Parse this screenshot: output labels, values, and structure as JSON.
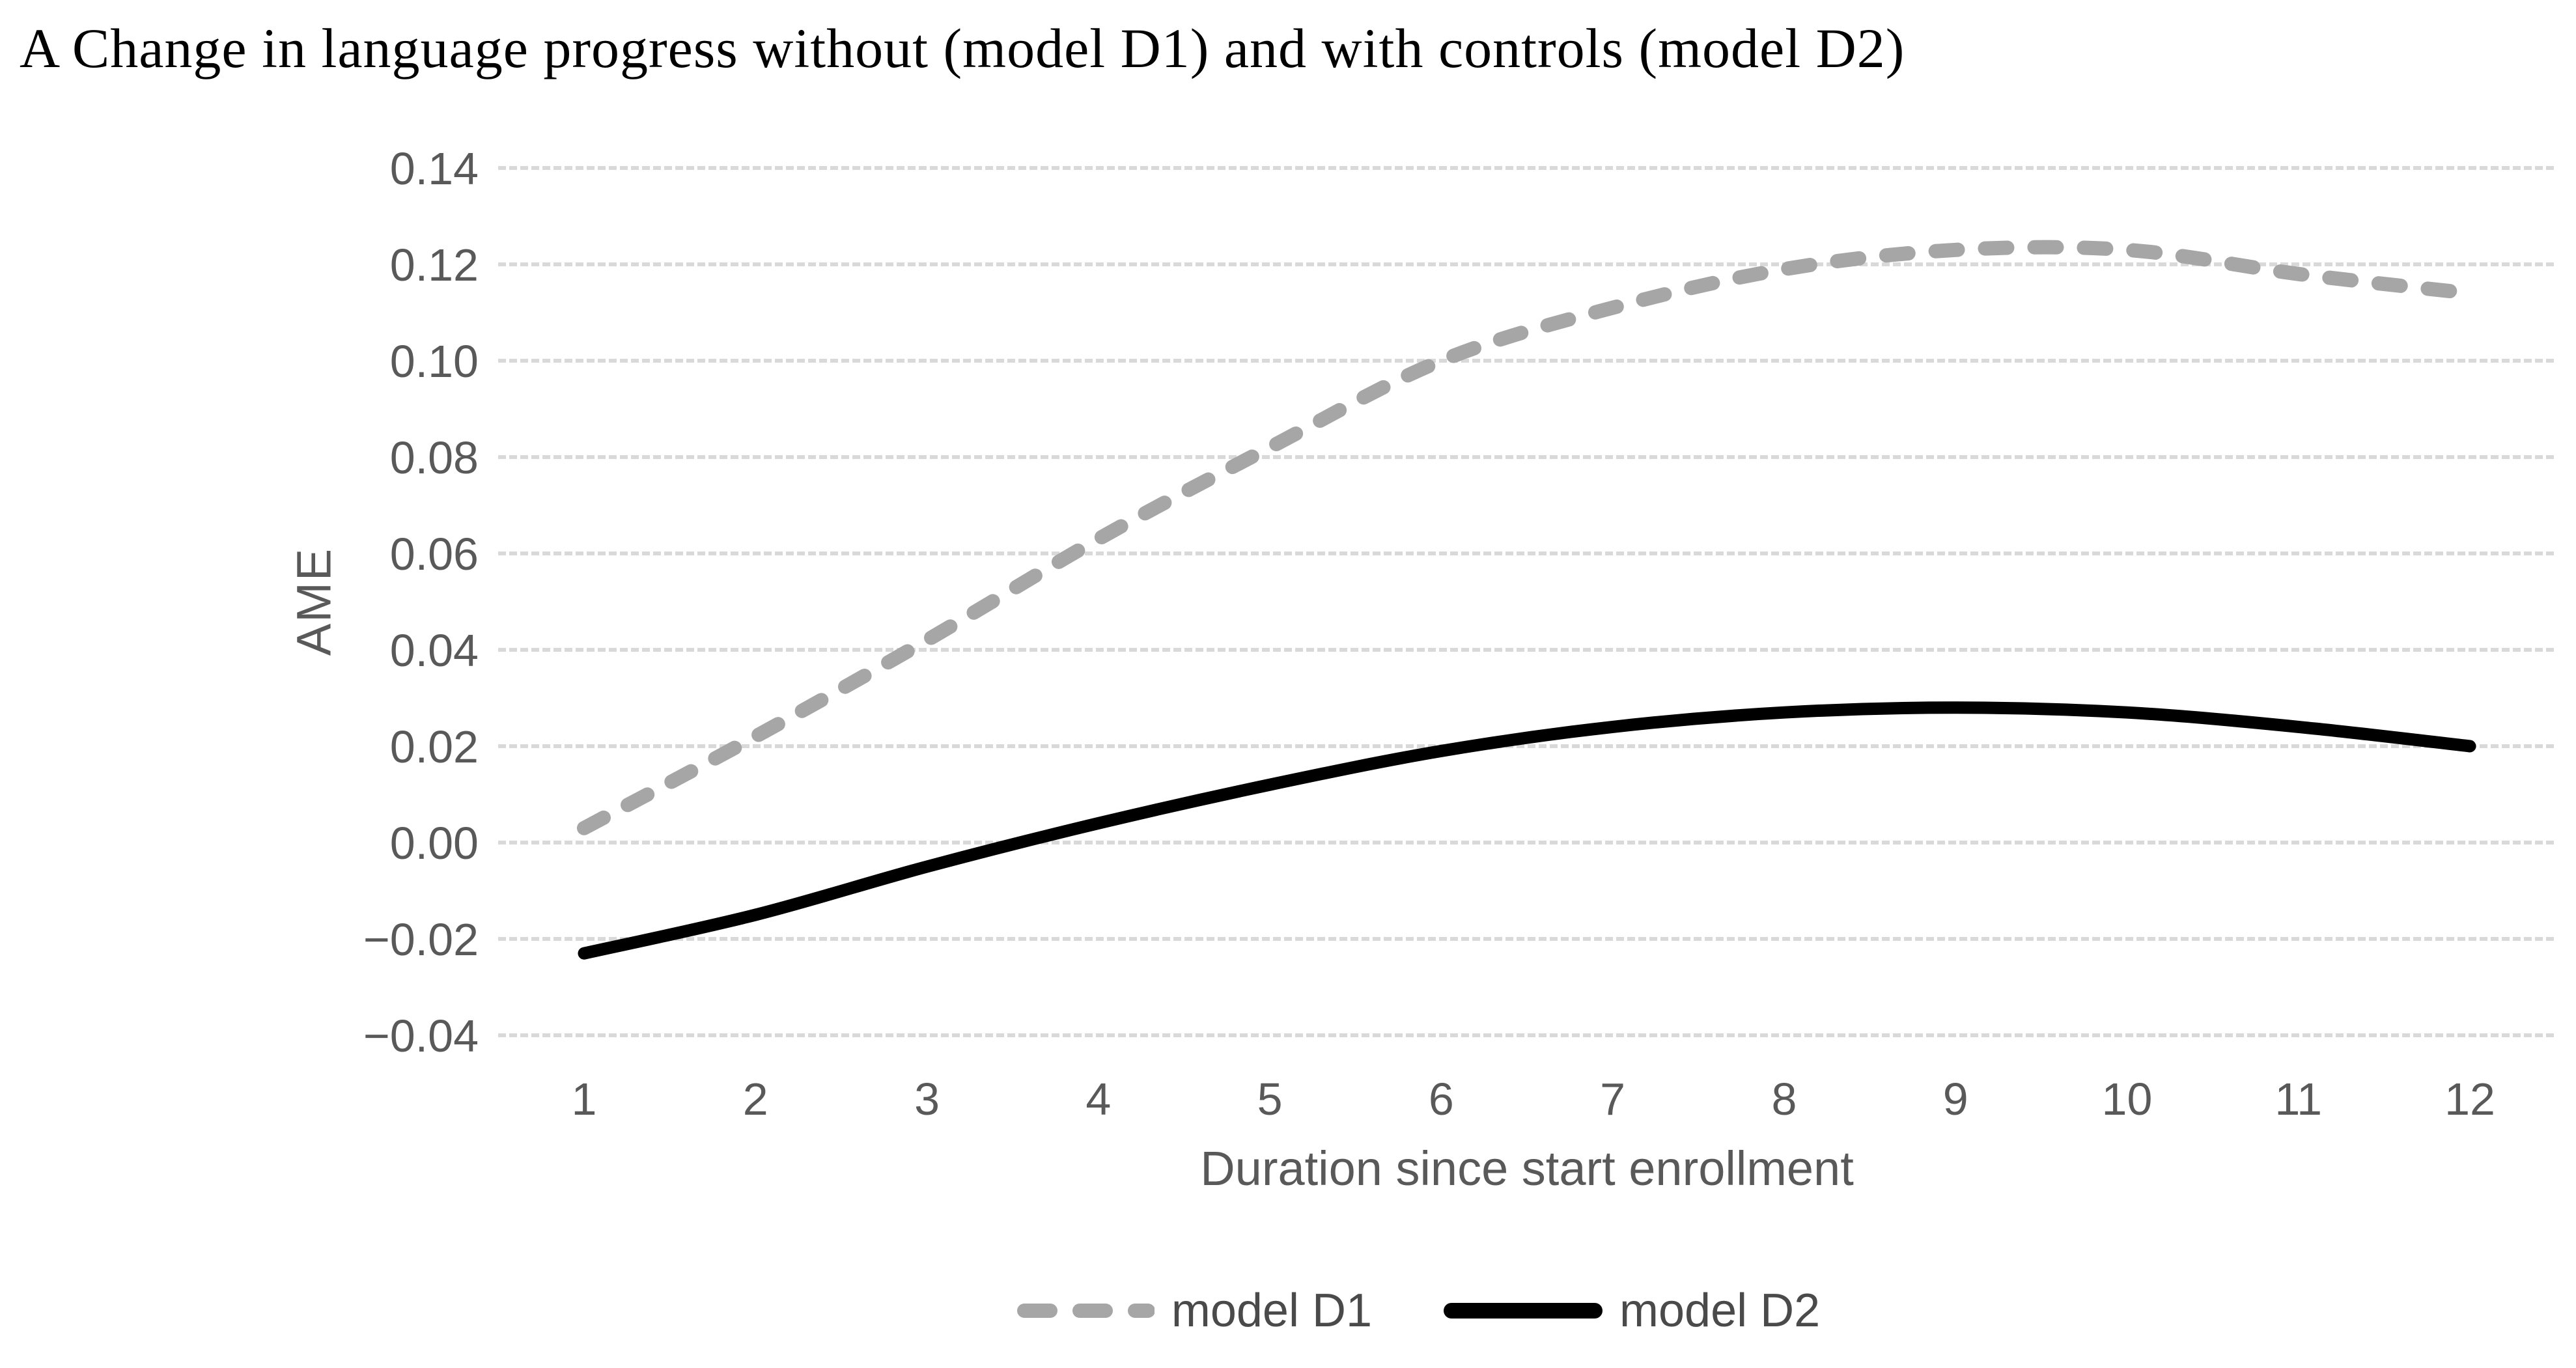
{
  "title": "A Change in language progress without (model D1) and with controls (model D2)",
  "chart_data": {
    "type": "line",
    "x": [
      1,
      2,
      3,
      4,
      5,
      6,
      7,
      8,
      9,
      10,
      11,
      12
    ],
    "xlabel": "Duration since start enrollment",
    "ylabel": "AME",
    "ylim": [
      -0.04,
      0.14
    ],
    "ytick_step": 0.02,
    "ytick_labels": [
      "0.14",
      "0.12",
      "0.10",
      "0.08",
      "0.06",
      "0.04",
      "0.02",
      "0.00",
      "−0.02",
      "−0.04"
    ],
    "grid": true,
    "legend_position": "bottom",
    "series": [
      {
        "name": "model D1",
        "style": "dashed",
        "color": "#a6a6a6",
        "values": [
          0.003,
          0.022,
          0.042,
          0.063,
          0.082,
          0.1,
          0.111,
          0.119,
          0.123,
          0.123,
          0.118,
          0.114
        ]
      },
      {
        "name": "model D2",
        "style": "solid",
        "color": "#000000",
        "values": [
          -0.023,
          -0.015,
          -0.005,
          0.004,
          0.012,
          0.019,
          0.024,
          0.027,
          0.028,
          0.027,
          0.024,
          0.02
        ]
      }
    ]
  },
  "colors": {
    "gridline": "#d9d9d9",
    "tick_text": "#595959",
    "axis_title_text": "#595959",
    "legend_text": "#4a4a4a",
    "title_text": "#000000"
  }
}
